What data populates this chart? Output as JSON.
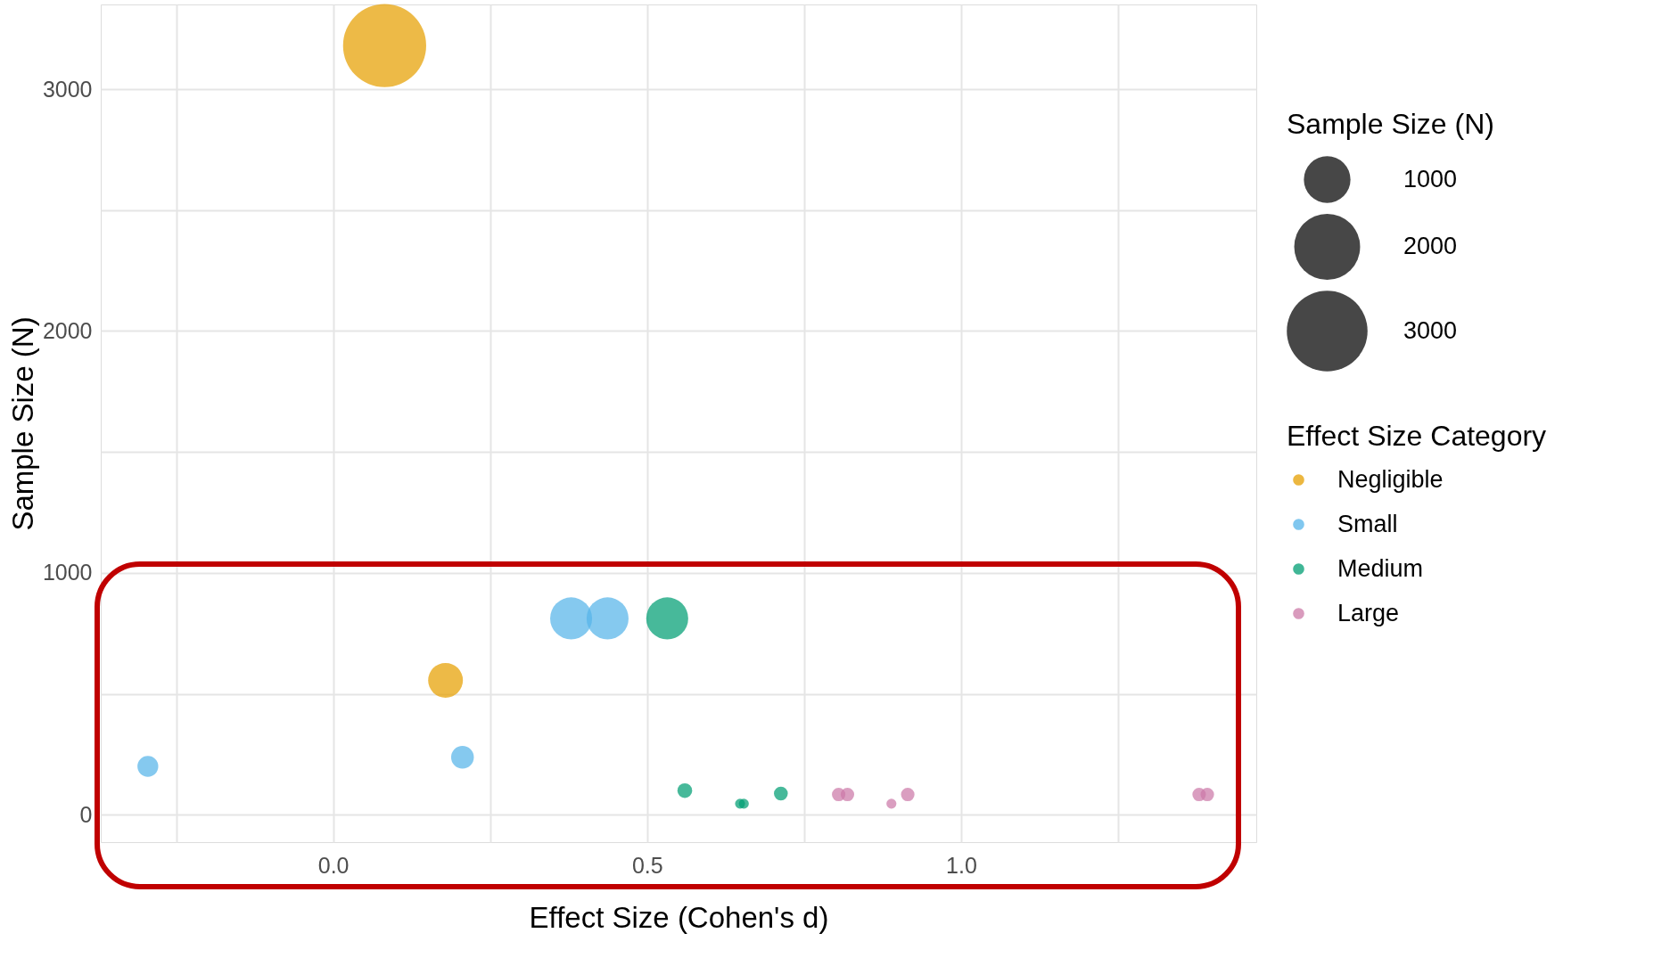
{
  "chart_data": {
    "type": "bubble",
    "xlabel": "Effect Size (Cohen's d)",
    "ylabel": "Sample Size (N)",
    "legend_title": [
      "Sample Size (N)",
      "Effect Size Category"
    ],
    "xlim": [
      -0.37,
      1.47
    ],
    "ylim": [
      -113,
      3350
    ],
    "xticks": [
      {
        "value": -0.25,
        "label": null
      },
      {
        "value": 0,
        "label": "0.0"
      },
      {
        "value": 0.25,
        "label": null
      },
      {
        "value": 0.5,
        "label": "0.5"
      },
      {
        "value": 0.75,
        "label": null
      },
      {
        "value": 1,
        "label": "1.0"
      },
      {
        "value": 1.25,
        "label": null
      }
    ],
    "yticks": [
      0,
      {
        "value": 500,
        "label": null
      },
      1000,
      {
        "value": 1500,
        "label": null
      },
      2000,
      {
        "value": 2500,
        "label": null
      },
      3000
    ],
    "size_legend": [
      1000,
      2000,
      3000
    ],
    "grid": true,
    "legend": "right",
    "marker": "circle",
    "series": [
      {
        "name": "Negligible",
        "color": "#E69F00",
        "x": [
          0.082,
          0.179
        ],
        "values": [
          3180,
          556
        ],
        "sizes": [
          3180,
          556
        ]
      },
      {
        "name": "Small",
        "color": "#56B4E9",
        "x": [
          -0.295,
          0.206,
          0.379,
          0.437
        ],
        "values": [
          200,
          238,
          812,
          812
        ],
        "sizes": [
          200,
          238,
          812,
          812
        ]
      },
      {
        "name": "Medium",
        "color": "#009E73",
        "x": [
          0.532,
          0.56,
          0.648,
          0.654,
          0.713
        ],
        "values": [
          812,
          100,
          46,
          46,
          88
        ],
        "sizes": [
          812,
          100,
          46,
          46,
          88
        ]
      },
      {
        "name": "Large",
        "color": "#CC79A7",
        "x": [
          0.805,
          0.819,
          0.889,
          0.915,
          1.379,
          1.392
        ],
        "values": [
          84,
          84,
          46,
          84,
          84,
          84
        ],
        "sizes": [
          84,
          84,
          46,
          84,
          84,
          84
        ]
      }
    ]
  }
}
